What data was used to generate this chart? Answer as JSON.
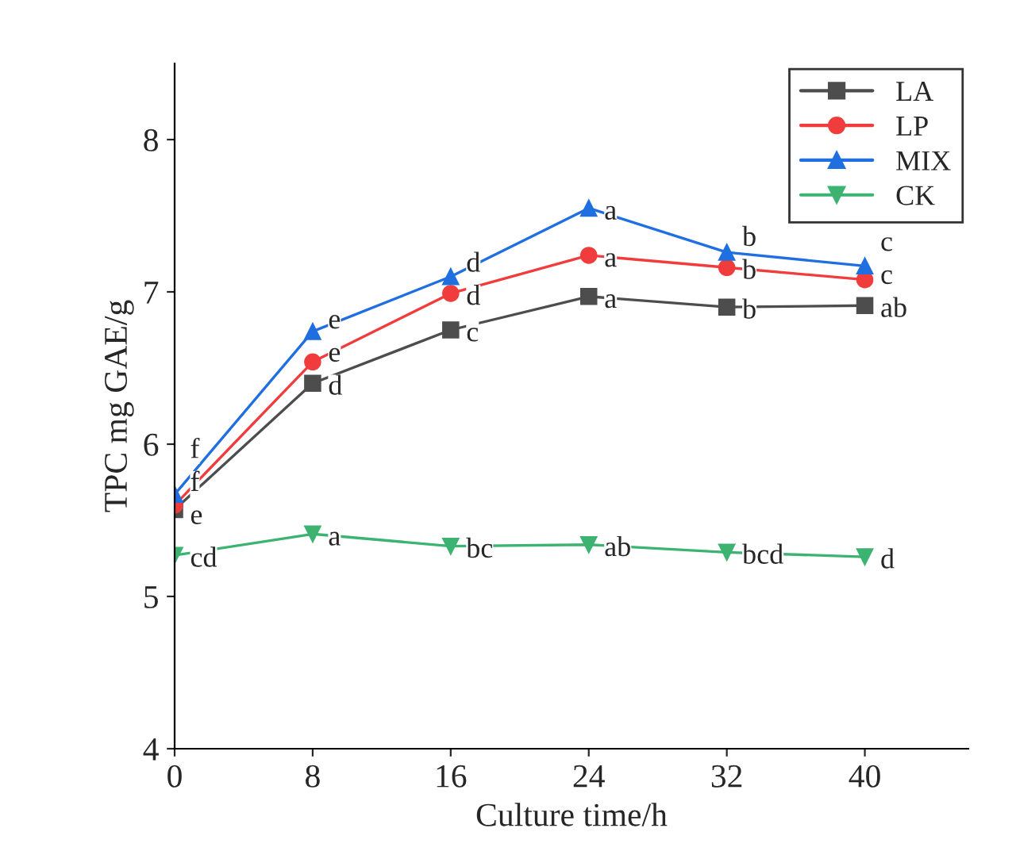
{
  "chart_data": {
    "type": "line",
    "xlabel": "Culture time/h",
    "ylabel": "TPC mg GAE/g",
    "x": [
      0,
      8,
      16,
      24,
      32,
      40
    ],
    "series": [
      {
        "name": "LA",
        "color": "#4d4d4d",
        "marker": "square",
        "values": [
          5.57,
          6.4,
          6.75,
          6.97,
          6.9,
          6.91
        ]
      },
      {
        "name": "LP",
        "color": "#f03c3c",
        "marker": "circle",
        "values": [
          5.6,
          6.54,
          6.99,
          7.24,
          7.16,
          7.08
        ]
      },
      {
        "name": "MIX",
        "color": "#1f6fe0",
        "marker": "triangle",
        "values": [
          5.67,
          6.74,
          7.1,
          7.55,
          7.26,
          7.17
        ]
      },
      {
        "name": "CK",
        "color": "#3cb371",
        "marker": "triangle_down",
        "values": [
          5.27,
          5.41,
          5.33,
          5.34,
          5.29,
          5.26
        ]
      }
    ],
    "xlim": [
      0,
      46
    ],
    "ylim": [
      4,
      8.5
    ],
    "xticks": [
      0,
      8,
      16,
      24,
      32,
      40
    ],
    "yticks": [
      4,
      5,
      6,
      7,
      8
    ],
    "grid": false,
    "legend": "top right",
    "annotations": [
      {
        "text": "e",
        "x": 0,
        "y": 5.55
      },
      {
        "text": "f",
        "x": 0,
        "y": 5.62
      },
      {
        "text": "f",
        "x": 0,
        "y": 5.67
      },
      {
        "text": "d",
        "x": 8,
        "y": 6.4
      },
      {
        "text": "e",
        "x": 8,
        "y": 6.54
      },
      {
        "text": "e",
        "x": 8,
        "y": 6.74
      },
      {
        "text": "c",
        "x": 16,
        "y": 6.75
      },
      {
        "text": "d",
        "x": 16,
        "y": 6.99
      },
      {
        "text": "d",
        "x": 16,
        "y": 7.1
      },
      {
        "text": "a",
        "x": 24,
        "y": 6.97
      },
      {
        "text": "a",
        "x": 24,
        "y": 7.24
      },
      {
        "text": "a",
        "x": 24,
        "y": 7.55
      },
      {
        "text": "b",
        "x": 32,
        "y": 6.9
      },
      {
        "text": "b",
        "x": 32,
        "y": 7.16
      },
      {
        "text": "b",
        "x": 32,
        "y": 7.26
      },
      {
        "text": "ab",
        "x": 40,
        "y": 6.91
      },
      {
        "text": "c",
        "x": 40,
        "y": 7.08
      },
      {
        "text": "c",
        "x": 40,
        "y": 7.17
      },
      {
        "text": "cd",
        "x": 0,
        "y": 5.27
      },
      {
        "text": "a",
        "x": 8,
        "y": 5.41
      },
      {
        "text": "bc",
        "x": 16,
        "y": 5.33
      },
      {
        "text": "ab",
        "x": 24,
        "y": 5.34
      },
      {
        "text": "bcd",
        "x": 32,
        "y": 5.29
      },
      {
        "text": "d",
        "x": 40,
        "y": 5.26
      }
    ]
  }
}
